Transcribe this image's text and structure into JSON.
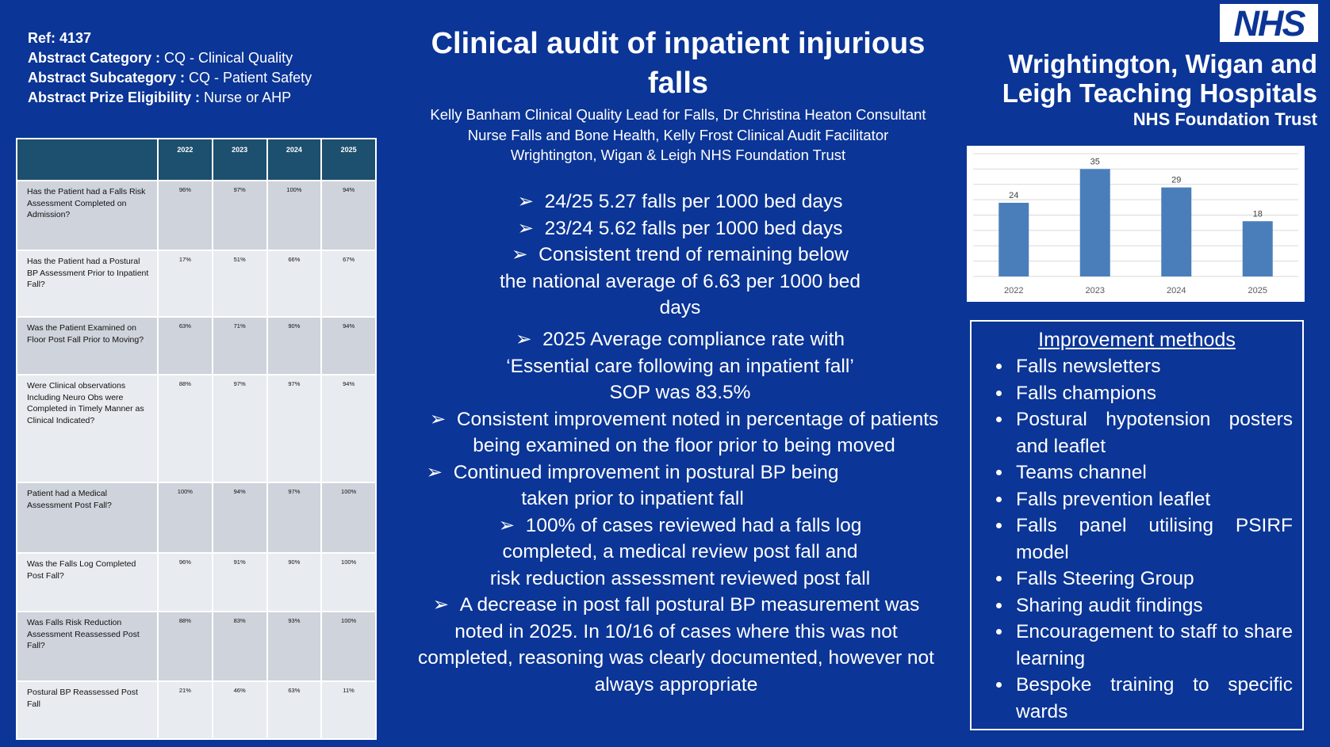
{
  "meta": {
    "ref": "Ref: 4137",
    "category_label": "Abstract Category :",
    "category_value": " CQ - Clinical Quality",
    "subcategory_label": "Abstract Subcategory :",
    "subcategory_value": " CQ - Patient Safety",
    "prize_label": "Abstract Prize Eligibility :",
    "prize_value": " Nurse or AHP"
  },
  "table": {
    "years": [
      "2022",
      "2023",
      "2024",
      "2025"
    ],
    "rows": [
      {
        "question": "Has the Patient had a Falls Risk Assessment Completed on Admission?",
        "values": [
          "96%",
          "97%",
          "100%",
          "94%"
        ]
      },
      {
        "question": "Has the Patient had a Postural BP Assessment Prior to Inpatient Fall?",
        "values": [
          "17%",
          "51%",
          "66%",
          "67%"
        ]
      },
      {
        "question": "Was the Patient Examined on Floor Post Fall Prior to Moving?",
        "values": [
          "63%",
          "71%",
          "90%",
          "94%"
        ]
      },
      {
        "question": "Were Clinical observations Including Neuro Obs were Completed in Timely Manner as Clinical Indicated?",
        "values": [
          "88%",
          "97%",
          "97%",
          "94%"
        ]
      },
      {
        "question": "Patient had a Medical Assessment Post Fall?",
        "values": [
          "100%",
          "94%",
          "97%",
          "100%"
        ]
      },
      {
        "question": "Was the Falls Log Completed Post Fall?",
        "values": [
          "96%",
          "91%",
          "90%",
          "100%"
        ]
      },
      {
        "question": "Was Falls Risk Reduction Assessment Reassessed Post Fall?",
        "values": [
          "88%",
          "83%",
          "93%",
          "100%"
        ]
      },
      {
        "question": "Postural BP Reassessed Post Fall",
        "values": [
          "21%",
          "46%",
          "63%",
          "11%"
        ]
      }
    ]
  },
  "poster": {
    "title": "Clinical audit of inpatient injurious falls",
    "authors": [
      "Kelly Banham Clinical Quality Lead for Falls, Dr Christina Heaton Consultant",
      "Nurse Falls and Bone Health, Kelly Frost Clinical Audit Facilitator",
      "Wrightington, Wigan & Leigh NHS Foundation Trust"
    ],
    "rate_bullets": [
      "24/25 5.27 falls per 1000 bed days",
      "23/24 5.62 falls per 1000 bed days",
      "Consistent trend of remaining below the national average of 6.63 per 1000 bed days"
    ],
    "finding_bullets": [
      "2025 Average compliance rate with ‘Essential care following an inpatient fall’ SOP was 83.5%",
      "Consistent improvement noted in percentage of patients being examined on the floor prior to being moved",
      "Continued improvement in postural BP being taken prior to  inpatient fall",
      "100% of cases reviewed had a falls log completed, a medical review post fall and risk reduction assessment reviewed post fall",
      "A decrease in post fall postural BP measurement was noted in 2025. In 10/16 of cases where this was not completed, reasoning was clearly documented, however not always appropriate"
    ]
  },
  "trust": {
    "logo": "NHS",
    "name": "Wrightington, Wigan and Leigh Teaching Hospitals",
    "subtitle": "NHS Foundation Trust"
  },
  "chart_data": {
    "type": "bar",
    "categories": [
      "2022",
      "2023",
      "2024",
      "2025"
    ],
    "values": [
      24,
      35,
      29,
      18
    ],
    "ylim": [
      0,
      40
    ],
    "grid": true,
    "bar_color": "#4a7ebb",
    "title": "",
    "xlabel": "",
    "ylabel": ""
  },
  "methods": {
    "title": "Improvement methods",
    "items": [
      "Falls newsletters",
      "Falls champions",
      "Postural hypotension posters and leaflet",
      "Teams channel",
      "Falls prevention leaflet",
      "Falls panel utilising PSIRF model",
      "Falls Steering Group",
      "Sharing audit findings",
      "Encouragement to staff to share learning",
      "Bespoke training to specific wards"
    ]
  }
}
